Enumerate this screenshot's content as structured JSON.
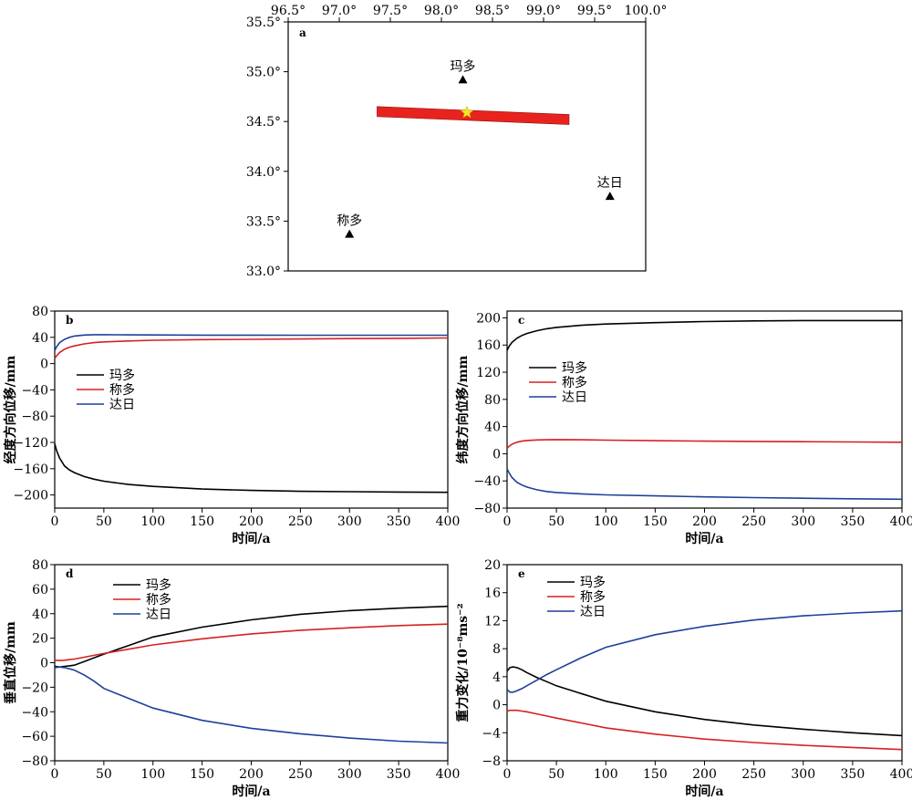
{
  "chart_data": [
    {
      "id": "a",
      "type": "map",
      "panel_label": "a",
      "xlim": [
        96.5,
        100.0
      ],
      "ylim": [
        33.0,
        35.5
      ],
      "xticks": [
        "96.5°",
        "97.0°",
        "97.5°",
        "98.0°",
        "98.5°",
        "99.0°",
        "99.5°",
        "100.0°"
      ],
      "yticks": [
        "35.5°",
        "35.0°",
        "34.5°",
        "34.0°",
        "33.5°",
        "33.0°"
      ],
      "stations": [
        {
          "name": "玛多",
          "lon": 98.21,
          "lat": 34.92
        },
        {
          "name": "称多",
          "lon": 97.1,
          "lat": 33.37
        },
        {
          "name": "达日",
          "lon": 99.65,
          "lat": 33.75
        }
      ],
      "fault": {
        "lon1": 97.37,
        "lat1": 34.6,
        "lon2": 99.25,
        "lat2": 34.52,
        "color": "#e8231e"
      },
      "epicenter": {
        "lon": 98.25,
        "lat": 34.59,
        "color": "#f5e625"
      }
    },
    {
      "id": "b",
      "type": "line",
      "panel_label": "b",
      "xlabel": "时间/a",
      "ylabel": "经度方向位移/mm",
      "xlim": [
        0,
        400
      ],
      "ylim": [
        -220,
        80
      ],
      "xticks": [
        0,
        50,
        100,
        150,
        200,
        250,
        300,
        350,
        400
      ],
      "yticks": [
        80,
        40,
        0,
        -40,
        -80,
        -120,
        -160,
        -200
      ],
      "legend": "upper-left",
      "x": [
        0,
        2,
        5,
        10,
        15,
        20,
        30,
        40,
        50,
        75,
        100,
        150,
        200,
        250,
        300,
        350,
        400
      ],
      "series": [
        {
          "name": "玛多",
          "color": "#000000",
          "values": [
            -122,
            -133,
            -144,
            -156,
            -162,
            -166,
            -172,
            -176,
            -179,
            -184,
            -187,
            -191,
            -193,
            -194.5,
            -195,
            -195.5,
            -196
          ]
        },
        {
          "name": "称多",
          "color": "#d62020",
          "values": [
            8,
            12,
            17,
            22,
            25,
            27,
            30,
            32,
            33,
            34.5,
            35.5,
            36.5,
            37,
            37.5,
            38,
            38.5,
            39
          ]
        },
        {
          "name": "达日",
          "color": "#1f3f9a",
          "values": [
            20,
            26,
            32,
            37,
            40,
            42,
            43.5,
            44,
            44,
            43.8,
            43.6,
            43.4,
            43.3,
            43.2,
            43.2,
            43.2,
            43.2
          ]
        }
      ]
    },
    {
      "id": "c",
      "type": "line",
      "panel_label": "c",
      "xlabel": "时间/a",
      "ylabel": "纬度方向位移/mm",
      "xlim": [
        0,
        400
      ],
      "ylim": [
        -80,
        210
      ],
      "xticks": [
        0,
        50,
        100,
        150,
        200,
        250,
        300,
        350,
        400
      ],
      "yticks": [
        200,
        160,
        120,
        80,
        40,
        0,
        -40,
        -80
      ],
      "legend": "center-left",
      "x": [
        0,
        2,
        5,
        10,
        15,
        20,
        30,
        40,
        50,
        75,
        100,
        150,
        200,
        250,
        300,
        350,
        400
      ],
      "series": [
        {
          "name": "玛多",
          "color": "#000000",
          "values": [
            152,
            158,
            164,
            170,
            174,
            177,
            181,
            184,
            186,
            189,
            191,
            193,
            194.5,
            195.5,
            196,
            196,
            196
          ]
        },
        {
          "name": "称多",
          "color": "#d62020",
          "values": [
            8,
            11,
            14,
            17,
            18.5,
            19.5,
            20.3,
            20.6,
            20.8,
            20.5,
            20,
            19.2,
            18.6,
            18.2,
            17.8,
            17.4,
            17
          ]
        },
        {
          "name": "达日",
          "color": "#1f3f9a",
          "values": [
            -22,
            -28,
            -35,
            -42,
            -46,
            -49,
            -53,
            -55.5,
            -57,
            -59,
            -60.5,
            -62,
            -63.5,
            -64.5,
            -65.5,
            -66.3,
            -67
          ]
        }
      ]
    },
    {
      "id": "d",
      "type": "line",
      "panel_label": "d",
      "xlabel": "时间/a",
      "ylabel": "垂直位移/mm",
      "xlim": [
        0,
        400
      ],
      "ylim": [
        -80,
        80
      ],
      "xticks": [
        0,
        50,
        100,
        150,
        200,
        250,
        300,
        350,
        400
      ],
      "yticks": [
        80,
        60,
        40,
        20,
        0,
        -20,
        -40,
        -60,
        -80
      ],
      "legend": "top-center",
      "x": [
        0,
        5,
        10,
        15,
        20,
        30,
        40,
        50,
        75,
        100,
        150,
        200,
        250,
        300,
        350,
        400
      ],
      "series": [
        {
          "name": "玛多",
          "color": "#000000",
          "values": [
            -3,
            -3.5,
            -3,
            -2.5,
            -2,
            1,
            4,
            7,
            14,
            21,
            29,
            35,
            39.5,
            42.5,
            44.5,
            46
          ]
        },
        {
          "name": "称多",
          "color": "#d62020",
          "values": [
            2,
            1.8,
            2,
            2.5,
            3,
            4.5,
            6,
            7.5,
            11,
            14.5,
            19.5,
            23.5,
            26.5,
            28.5,
            30.3,
            31.5
          ]
        },
        {
          "name": "达日",
          "color": "#1f3f9a",
          "values": [
            -4,
            -3.5,
            -4,
            -5,
            -6,
            -10,
            -15,
            -21,
            -29,
            -37,
            -47,
            -53.5,
            -58,
            -61.5,
            -64,
            -65.5
          ]
        }
      ]
    },
    {
      "id": "e",
      "type": "line",
      "panel_label": "e",
      "xlabel": "时间/a",
      "ylabel": "重力变化/10⁻⁸ms⁻²",
      "xlim": [
        0,
        400
      ],
      "ylim": [
        -8,
        20
      ],
      "xticks": [
        0,
        50,
        100,
        150,
        200,
        250,
        300,
        350,
        400
      ],
      "yticks": [
        20,
        16,
        12,
        8,
        4,
        0,
        -4,
        -8
      ],
      "legend": "top-center",
      "x": [
        0,
        3,
        6,
        10,
        15,
        20,
        30,
        40,
        50,
        75,
        100,
        150,
        200,
        250,
        300,
        350,
        400
      ],
      "series": [
        {
          "name": "玛多",
          "color": "#000000",
          "values": [
            4.8,
            5.3,
            5.4,
            5.3,
            5.0,
            4.6,
            3.9,
            3.3,
            2.7,
            1.6,
            0.5,
            -1.0,
            -2.1,
            -2.9,
            -3.5,
            -4.0,
            -4.4
          ]
        },
        {
          "name": "称多",
          "color": "#d62020",
          "values": [
            -0.9,
            -0.8,
            -0.8,
            -0.8,
            -0.9,
            -1.0,
            -1.3,
            -1.6,
            -1.9,
            -2.6,
            -3.3,
            -4.2,
            -4.9,
            -5.4,
            -5.8,
            -6.1,
            -6.4
          ]
        },
        {
          "name": "达日",
          "color": "#1f3f9a",
          "values": [
            2.2,
            1.8,
            1.8,
            2.0,
            2.3,
            2.7,
            3.5,
            4.3,
            5.0,
            6.7,
            8.2,
            10.0,
            11.2,
            12.1,
            12.7,
            13.1,
            13.4
          ]
        }
      ]
    }
  ]
}
